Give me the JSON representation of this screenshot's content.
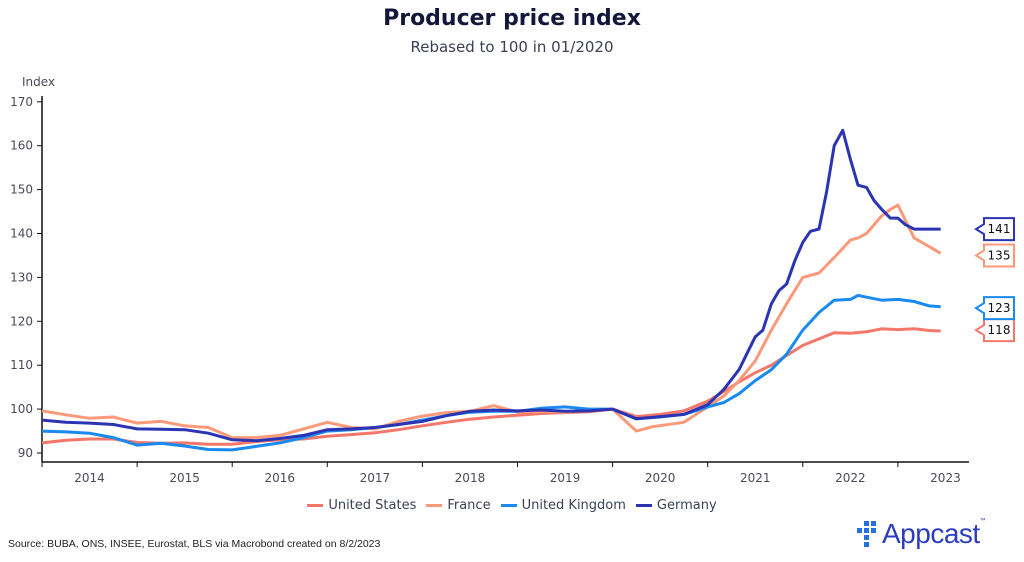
{
  "chart_data": {
    "type": "line",
    "title": "Producer price index",
    "subtitle": "Rebased to 100 in 01/2020",
    "ylabel": "Index",
    "xlabel": "",
    "ylim": [
      90,
      170
    ],
    "yticks": [
      90,
      100,
      110,
      120,
      130,
      140,
      150,
      160,
      170
    ],
    "xlim": [
      2014.0,
      2023.75
    ],
    "xticks": [
      "2014",
      "2015",
      "2016",
      "2017",
      "2018",
      "2019",
      "2020",
      "2021",
      "2022",
      "2023"
    ],
    "grid": false,
    "legend_position": "bottom",
    "series": [
      {
        "name": "United States",
        "color": "#f4776a",
        "end_label": "118",
        "x": [
          2014.0,
          2014.25,
          2014.5,
          2014.75,
          2015.0,
          2015.25,
          2015.5,
          2015.75,
          2016.0,
          2016.25,
          2016.5,
          2016.75,
          2017.0,
          2017.25,
          2017.5,
          2017.75,
          2018.0,
          2018.25,
          2018.5,
          2018.75,
          2019.0,
          2019.25,
          2019.5,
          2019.75,
          2020.0,
          2020.25,
          2020.5,
          2020.75,
          2021.0,
          2021.17,
          2021.33,
          2021.5,
          2021.67,
          2021.83,
          2022.0,
          2022.17,
          2022.33,
          2022.5,
          2022.67,
          2022.83,
          2023.0,
          2023.17,
          2023.33,
          2023.45
        ],
        "values": [
          92.3,
          92.9,
          93.2,
          93.2,
          92.4,
          92.2,
          92.3,
          92.0,
          92.0,
          92.6,
          93.0,
          93.2,
          93.8,
          94.2,
          94.6,
          95.3,
          96.2,
          97.0,
          97.7,
          98.2,
          98.6,
          99.0,
          99.2,
          99.4,
          100.0,
          98.3,
          98.8,
          99.6,
          101.8,
          104.0,
          106.2,
          108.3,
          110.0,
          112.2,
          114.5,
          116.0,
          117.4,
          117.3,
          117.6,
          118.3,
          118.1,
          118.3,
          117.9,
          117.8
        ]
      },
      {
        "name": "France",
        "color": "#fb9a7a",
        "end_label": "135",
        "x": [
          2014.0,
          2014.25,
          2014.5,
          2014.75,
          2015.0,
          2015.25,
          2015.5,
          2015.75,
          2016.0,
          2016.25,
          2016.5,
          2016.75,
          2017.0,
          2017.25,
          2017.5,
          2017.75,
          2018.0,
          2018.25,
          2018.5,
          2018.75,
          2019.0,
          2019.25,
          2019.5,
          2019.75,
          2020.0,
          2020.25,
          2020.42,
          2020.75,
          2021.0,
          2021.17,
          2021.33,
          2021.5,
          2021.67,
          2021.83,
          2022.0,
          2022.17,
          2022.33,
          2022.5,
          2022.58,
          2022.67,
          2022.83,
          2022.92,
          2023.0,
          2023.17,
          2023.33,
          2023.45
        ],
        "values": [
          99.6,
          98.7,
          97.9,
          98.2,
          96.8,
          97.2,
          96.2,
          95.8,
          93.5,
          93.5,
          94.0,
          95.5,
          97.0,
          95.8,
          95.5,
          97.2,
          98.4,
          99.2,
          99.5,
          100.8,
          99.3,
          99.5,
          99.3,
          99.8,
          100.0,
          95.0,
          96.0,
          97.0,
          100.5,
          103.0,
          106.5,
          111.0,
          118.0,
          124.0,
          130.0,
          131.0,
          134.5,
          138.5,
          139.0,
          140.0,
          144.0,
          145.5,
          146.5,
          139.0,
          137.0,
          135.5
        ]
      },
      {
        "name": "United Kingdom",
        "color": "#1a8af0",
        "end_label": "123",
        "x": [
          2014.0,
          2014.25,
          2014.5,
          2014.75,
          2015.0,
          2015.25,
          2015.5,
          2015.75,
          2016.0,
          2016.25,
          2016.5,
          2016.75,
          2017.0,
          2017.25,
          2017.5,
          2017.75,
          2018.0,
          2018.25,
          2018.5,
          2018.75,
          2019.0,
          2019.25,
          2019.5,
          2019.75,
          2020.0,
          2020.25,
          2020.5,
          2020.75,
          2021.0,
          2021.17,
          2021.33,
          2021.5,
          2021.67,
          2021.83,
          2022.0,
          2022.17,
          2022.33,
          2022.5,
          2022.58,
          2022.67,
          2022.83,
          2023.0,
          2023.17,
          2023.33,
          2023.45
        ],
        "values": [
          95.0,
          94.8,
          94.5,
          93.5,
          91.8,
          92.2,
          91.6,
          90.8,
          90.7,
          91.5,
          92.3,
          93.5,
          95.0,
          95.3,
          95.8,
          96.5,
          97.5,
          98.5,
          99.3,
          99.5,
          99.5,
          100.2,
          100.5,
          100.0,
          100.0,
          97.8,
          98.2,
          98.8,
          100.5,
          101.5,
          103.5,
          106.5,
          109.0,
          112.5,
          118.0,
          122.0,
          124.8,
          125.0,
          125.9,
          125.5,
          124.8,
          125.0,
          124.5,
          123.5,
          123.3
        ]
      },
      {
        "name": "Germany",
        "color": "#2b35b4",
        "end_label": "141",
        "x": [
          2014.0,
          2014.25,
          2014.5,
          2014.75,
          2015.0,
          2015.25,
          2015.5,
          2015.75,
          2016.0,
          2016.25,
          2016.5,
          2016.75,
          2017.0,
          2017.25,
          2017.5,
          2017.75,
          2018.0,
          2018.25,
          2018.5,
          2018.75,
          2019.0,
          2019.25,
          2019.5,
          2019.75,
          2020.0,
          2020.25,
          2020.5,
          2020.75,
          2021.0,
          2021.17,
          2021.33,
          2021.5,
          2021.58,
          2021.67,
          2021.75,
          2021.83,
          2021.92,
          2022.0,
          2022.08,
          2022.17,
          2022.25,
          2022.33,
          2022.42,
          2022.5,
          2022.58,
          2022.67,
          2022.75,
          2022.83,
          2022.92,
          2023.0,
          2023.08,
          2023.17,
          2023.25,
          2023.33,
          2023.45
        ],
        "values": [
          97.5,
          97.0,
          96.8,
          96.5,
          95.5,
          95.4,
          95.3,
          94.5,
          93.0,
          92.8,
          93.3,
          94.0,
          95.3,
          95.5,
          95.8,
          96.5,
          97.2,
          98.5,
          99.5,
          99.8,
          99.6,
          99.8,
          99.5,
          99.6,
          100.0,
          97.8,
          98.3,
          98.8,
          101.0,
          104.5,
          109.0,
          116.5,
          118.0,
          124.0,
          127.0,
          128.5,
          134.0,
          138.0,
          140.5,
          141.0,
          149.5,
          160.0,
          163.5,
          157.0,
          151.0,
          150.5,
          147.5,
          145.5,
          143.5,
          143.5,
          142.0,
          141.0,
          141.0,
          141.0,
          141.0
        ]
      }
    ]
  },
  "footer": {
    "source": "Source: BUBA, ONS, INSEE, Eurostat, BLS via Macrobond created on 8/2/2023",
    "logo_text": "Appcast",
    "logo_tm": "™"
  }
}
